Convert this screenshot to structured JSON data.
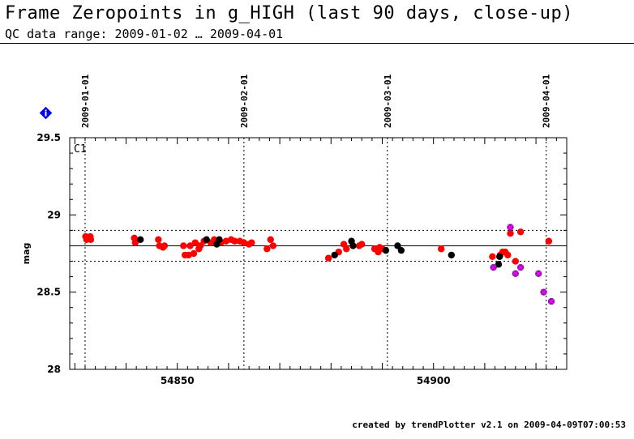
{
  "header": {
    "title": "Frame Zeropoints in g_HIGH (last 90 days, close-up)",
    "subtitle": "QC data range: 2009-01-02 … 2009-04-01"
  },
  "footer": {
    "credit": "created by trendPlotter v2.1 on 2009-04-09T07:00:53"
  },
  "info_icon": {
    "name": "info-icon",
    "glyph": "i",
    "color": "#0000ee"
  },
  "chart_data": {
    "type": "scatter",
    "panel_label": "C1",
    "ylabel": "mag",
    "xlabel": "",
    "xlim": [
      54829,
      54926
    ],
    "ylim": [
      28,
      29.5
    ],
    "x_ticks": [
      54850,
      54900
    ],
    "x_tick_labels": [
      "54850",
      "54900"
    ],
    "y_ticks": [
      28,
      28.5,
      29,
      29.5
    ],
    "y_tick_labels": [
      "28",
      "28.5",
      "29",
      "29.5"
    ],
    "reference_line": 28.8,
    "tolerance_lines": [
      28.7,
      28.9
    ],
    "date_markers": [
      {
        "mjd": 54832,
        "label": "2009-01-01"
      },
      {
        "mjd": 54863,
        "label": "2009-02-01"
      },
      {
        "mjd": 54891,
        "label": "2009-03-01"
      },
      {
        "mjd": 54922,
        "label": "2009-04-01"
      }
    ],
    "colors": {
      "ok": "#ff0000",
      "reference": "#000000",
      "outlier_fill": "#7a1fa2",
      "outlier_mark": "#ff00ff"
    },
    "series": [
      {
        "name": "red",
        "color": "#ff0000",
        "points": [
          [
            54832.1,
            28.86
          ],
          [
            54832.3,
            28.84
          ],
          [
            54832.6,
            28.85
          ],
          [
            54833.0,
            28.86
          ],
          [
            54833.1,
            28.84
          ],
          [
            54841.6,
            28.85
          ],
          [
            54841.8,
            28.82
          ],
          [
            54846.3,
            28.84
          ],
          [
            54846.5,
            28.8
          ],
          [
            54847.2,
            28.79
          ],
          [
            54847.5,
            28.8
          ],
          [
            54851.2,
            28.8
          ],
          [
            54851.5,
            28.74
          ],
          [
            54852.2,
            28.74
          ],
          [
            54852.5,
            28.8
          ],
          [
            54853.2,
            28.75
          ],
          [
            54853.5,
            28.82
          ],
          [
            54854.2,
            28.78
          ],
          [
            54854.5,
            28.8
          ],
          [
            54855.2,
            28.83
          ],
          [
            54856.5,
            28.82
          ],
          [
            54857.2,
            28.84
          ],
          [
            54858.5,
            28.82
          ],
          [
            54859.5,
            28.83
          ],
          [
            54860.5,
            28.84
          ],
          [
            54861.2,
            28.83
          ],
          [
            54862.2,
            28.83
          ],
          [
            54863.0,
            28.82
          ],
          [
            54864.0,
            28.81
          ],
          [
            54864.5,
            28.82
          ],
          [
            54867.5,
            28.78
          ],
          [
            54868.2,
            28.84
          ],
          [
            54868.7,
            28.8
          ],
          [
            54879.5,
            28.72
          ],
          [
            54881.5,
            28.76
          ],
          [
            54882.5,
            28.81
          ],
          [
            54883.0,
            28.78
          ],
          [
            54885.5,
            28.8
          ],
          [
            54886.0,
            28.81
          ],
          [
            54888.5,
            28.78
          ],
          [
            54889.2,
            28.76
          ],
          [
            54889.5,
            28.79
          ],
          [
            54890.0,
            28.78
          ],
          [
            54901.5,
            28.78
          ],
          [
            54911.5,
            28.73
          ],
          [
            54913.0,
            28.74
          ],
          [
            54913.5,
            28.76
          ],
          [
            54914.0,
            28.76
          ],
          [
            54914.5,
            28.74
          ],
          [
            54915.0,
            28.88
          ],
          [
            54916.0,
            28.7
          ],
          [
            54917.0,
            28.89
          ],
          [
            54922.5,
            28.83
          ]
        ]
      },
      {
        "name": "black",
        "color": "#000000",
        "points": [
          [
            54842.8,
            28.84
          ],
          [
            54855.7,
            28.84
          ],
          [
            54857.7,
            28.81
          ],
          [
            54858.2,
            28.84
          ],
          [
            54880.7,
            28.74
          ],
          [
            54884.0,
            28.83
          ],
          [
            54884.3,
            28.8
          ],
          [
            54890.7,
            28.77
          ],
          [
            54893.0,
            28.8
          ],
          [
            54893.7,
            28.77
          ],
          [
            54903.5,
            28.74
          ],
          [
            54912.7,
            28.68
          ],
          [
            54912.9,
            28.73
          ]
        ]
      },
      {
        "name": "outliers",
        "color": "#7a1fa2",
        "points": [
          [
            54911.7,
            28.66
          ],
          [
            54915.0,
            28.92
          ],
          [
            54916.0,
            28.62
          ],
          [
            54917.0,
            28.66
          ],
          [
            54920.5,
            28.62
          ],
          [
            54921.5,
            28.5
          ],
          [
            54923.0,
            28.44
          ]
        ]
      }
    ]
  }
}
